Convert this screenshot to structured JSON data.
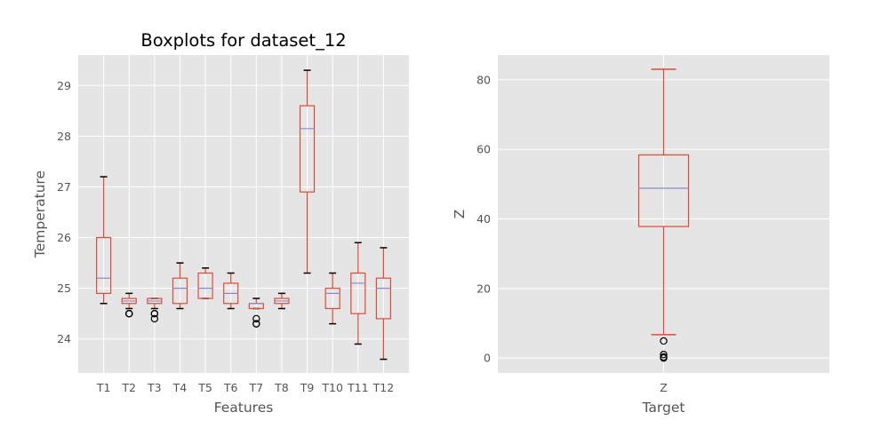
{
  "chart_data": [
    {
      "type": "box",
      "title": "Boxplots for dataset_12",
      "xlabel": "Features",
      "ylabel": "Temperature",
      "ylim": [
        23.33,
        29.6
      ],
      "yticks": [
        24,
        25,
        26,
        27,
        28,
        29
      ],
      "grid": true,
      "categories": [
        "T1",
        "T2",
        "T3",
        "T4",
        "T5",
        "T6",
        "T7",
        "T8",
        "T9",
        "T10",
        "T11",
        "T12"
      ],
      "boxes": [
        {
          "whislo": 24.7,
          "q1": 24.9,
          "med": 25.2,
          "q3": 26.0,
          "whishi": 27.2,
          "fliers": []
        },
        {
          "whislo": 24.6,
          "q1": 24.7,
          "med": 24.75,
          "q3": 24.8,
          "whishi": 24.9,
          "fliers": [
            24.5,
            24.5,
            24.5
          ]
        },
        {
          "whislo": 24.6,
          "q1": 24.7,
          "med": 24.75,
          "q3": 24.8,
          "whishi": 24.8,
          "fliers": [
            24.4,
            24.5,
            24.5
          ]
        },
        {
          "whislo": 24.6,
          "q1": 24.7,
          "med": 25.0,
          "q3": 25.2,
          "whishi": 25.5,
          "fliers": []
        },
        {
          "whislo": 24.8,
          "q1": 24.8,
          "med": 25.0,
          "q3": 25.3,
          "whishi": 25.4,
          "fliers": []
        },
        {
          "whislo": 24.6,
          "q1": 24.7,
          "med": 24.9,
          "q3": 25.1,
          "whishi": 25.3,
          "fliers": []
        },
        {
          "whislo": 24.6,
          "q1": 24.6,
          "med": 24.7,
          "q3": 24.7,
          "whishi": 24.8,
          "fliers": [
            24.3,
            24.3,
            24.4
          ]
        },
        {
          "whislo": 24.6,
          "q1": 24.7,
          "med": 24.75,
          "q3": 24.8,
          "whishi": 24.9,
          "fliers": []
        },
        {
          "whislo": 25.3,
          "q1": 26.9,
          "med": 28.15,
          "q3": 28.6,
          "whishi": 29.3,
          "fliers": []
        },
        {
          "whislo": 24.3,
          "q1": 24.6,
          "med": 24.9,
          "q3": 25.0,
          "whishi": 25.3,
          "fliers": []
        },
        {
          "whislo": 23.9,
          "q1": 24.5,
          "med": 25.1,
          "q3": 25.3,
          "whishi": 25.9,
          "fliers": []
        },
        {
          "whislo": 23.6,
          "q1": 24.4,
          "med": 25.0,
          "q3": 25.2,
          "whishi": 25.8,
          "fliers": []
        }
      ],
      "colors": {
        "box": "#e24a33",
        "median": "#8a8bc8",
        "whisker": "#e24a33",
        "cap": "#000000",
        "flier": "#000000",
        "background": "#e5e5e5",
        "grid": "#ffffff"
      }
    },
    {
      "type": "box",
      "title": "",
      "xlabel": "Target",
      "ylabel": "Z",
      "ylim": [
        -4.3,
        87.1
      ],
      "yticks": [
        0,
        20,
        40,
        60,
        80
      ],
      "grid": true,
      "categories": [
        "Z"
      ],
      "boxes": [
        {
          "whislo": 6.7,
          "q1": 37.8,
          "med": 48.8,
          "q3": 58.4,
          "whishi": 83.0,
          "fliers": [
            4.9,
            1.0,
            0.3,
            0.0
          ]
        }
      ],
      "colors": {
        "box": "#e24a33",
        "median": "#8a8bc8",
        "whisker": "#e24a33",
        "cap": "#e24a33",
        "flier": "#000000",
        "background": "#e5e5e5",
        "grid": "#ffffff"
      }
    }
  ]
}
